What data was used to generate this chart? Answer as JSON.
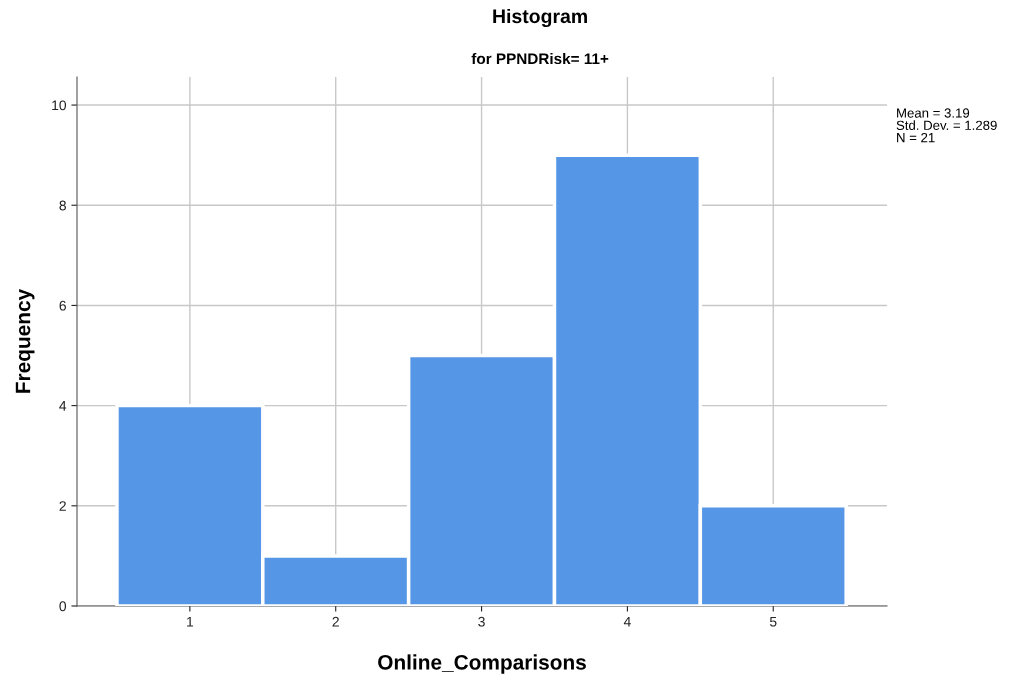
{
  "chart_data": {
    "type": "histogram",
    "title": "Histogram",
    "subtitle": "for PPNDRisk= 11+",
    "xlabel": "Online_Comparisons",
    "ylabel": "Frequency",
    "bins": [
      0.5,
      1.5,
      2.5,
      3.5,
      4.5,
      5.5
    ],
    "values": [
      4,
      1,
      5,
      9,
      2
    ],
    "color": "#5596e6",
    "xlim": [
      0.226,
      5.78
    ],
    "xticks": [
      1,
      2,
      3,
      4,
      5
    ],
    "ylim": [
      0,
      10.56
    ],
    "yticks": [
      0,
      2,
      4,
      6,
      8,
      10
    ],
    "grid": true,
    "annotations": [
      "Mean = 3.19\nStd. Dev. = 1.289\nN = 21"
    ]
  }
}
